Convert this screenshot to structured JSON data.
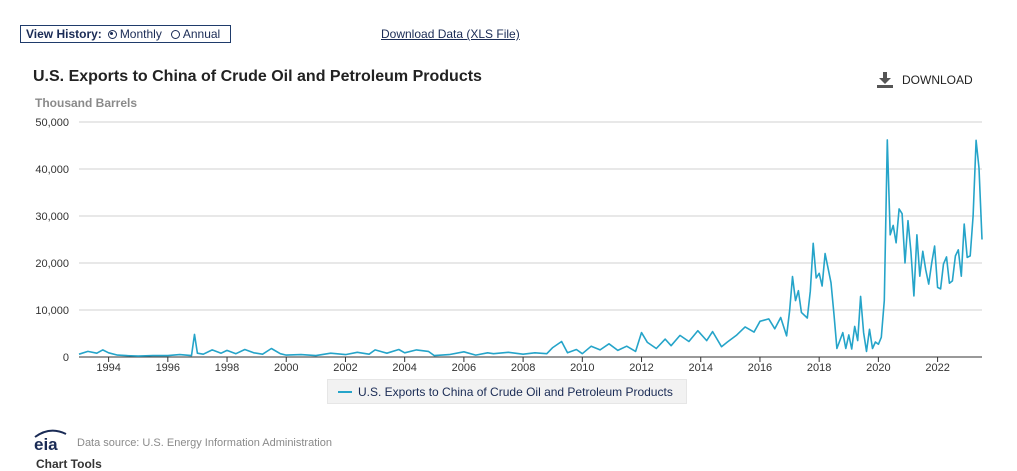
{
  "controls": {
    "view_history_label": "View History:",
    "monthly_label": "Monthly",
    "annual_label": "Annual",
    "download_link": "Download Data (XLS File)",
    "download_button": "DOWNLOAD"
  },
  "footer": {
    "source": "Data source: U.S. Energy Information Administration",
    "logo_text": "eia",
    "partial_text": "Chart Tools"
  },
  "colors": {
    "series": "#25a4c9",
    "grid": "#d0d0d0",
    "text_blue": "#1a2b55"
  },
  "chart_data": {
    "type": "line",
    "title": "U.S. Exports to China of Crude Oil and Petroleum Products",
    "ylabel": "Thousand Barrels",
    "xlabel": "",
    "xlim": [
      1993.0,
      2023.5
    ],
    "ylim": [
      0,
      50000
    ],
    "yticks": [
      0,
      10000,
      20000,
      30000,
      40000,
      50000
    ],
    "ytick_labels": [
      "0",
      "10,000",
      "20,000",
      "30,000",
      "40,000",
      "50,000"
    ],
    "xticks": [
      1994,
      1996,
      1998,
      2000,
      2002,
      2004,
      2006,
      2008,
      2010,
      2012,
      2014,
      2016,
      2018,
      2020,
      2022
    ],
    "xtick_labels": [
      "1994",
      "1996",
      "1998",
      "2000",
      "2002",
      "2004",
      "2006",
      "2008",
      "2010",
      "2012",
      "2014",
      "2016",
      "2018",
      "2020",
      "2022"
    ],
    "legend": "top-center-below",
    "series": [
      {
        "name": "U.S. Exports to China of Crude Oil and Petroleum Products",
        "x": [
          1993.0,
          1993.3,
          1993.6,
          1993.8,
          1994.0,
          1994.3,
          1994.6,
          1995.0,
          1995.5,
          1996.0,
          1996.4,
          1996.8,
          1996.9,
          1997.0,
          1997.2,
          1997.5,
          1997.8,
          1998.0,
          1998.3,
          1998.6,
          1998.9,
          1999.2,
          1999.5,
          1999.8,
          2000.0,
          2000.5,
          2001.0,
          2001.5,
          2002.0,
          2002.4,
          2002.8,
          2003.0,
          2003.4,
          2003.8,
          2004.0,
          2004.4,
          2004.8,
          2005.0,
          2005.5,
          2006.0,
          2006.4,
          2006.8,
          2007.0,
          2007.5,
          2008.0,
          2008.4,
          2008.8,
          2009.0,
          2009.3,
          2009.5,
          2009.8,
          2010.0,
          2010.3,
          2010.6,
          2010.9,
          2011.2,
          2011.5,
          2011.8,
          2012.0,
          2012.2,
          2012.5,
          2012.8,
          2013.0,
          2013.3,
          2013.6,
          2013.9,
          2014.2,
          2014.4,
          2014.7,
          2014.9,
          2015.2,
          2015.5,
          2015.8,
          2016.0,
          2016.3,
          2016.5,
          2016.7,
          2016.9,
          2017.0,
          2017.1,
          2017.2,
          2017.3,
          2017.4,
          2017.6,
          2017.7,
          2017.8,
          2017.9,
          2018.0,
          2018.1,
          2018.2,
          2018.4,
          2018.5,
          2018.6,
          2018.8,
          2018.9,
          2019.0,
          2019.1,
          2019.2,
          2019.3,
          2019.4,
          2019.5,
          2019.6,
          2019.7,
          2019.8,
          2019.9,
          2020.0,
          2020.1,
          2020.2,
          2020.3,
          2020.4,
          2020.5,
          2020.6,
          2020.7,
          2020.8,
          2020.9,
          2021.0,
          2021.1,
          2021.2,
          2021.3,
          2021.4,
          2021.5,
          2021.6,
          2021.7,
          2021.8,
          2021.9,
          2022.0,
          2022.1,
          2022.2,
          2022.3,
          2022.4,
          2022.5,
          2022.6,
          2022.7,
          2022.8,
          2022.9,
          2023.0,
          2023.1,
          2023.2,
          2023.3,
          2023.4,
          2023.5
        ],
        "values": [
          600,
          1200,
          800,
          1500,
          900,
          400,
          300,
          200,
          300,
          300,
          500,
          300,
          4800,
          800,
          600,
          1500,
          800,
          1400,
          700,
          1600,
          900,
          600,
          1800,
          700,
          400,
          500,
          300,
          800,
          500,
          1000,
          600,
          1500,
          800,
          1600,
          900,
          1500,
          1200,
          300,
          500,
          1100,
          400,
          900,
          700,
          1000,
          600,
          900,
          700,
          2000,
          3300,
          900,
          1600,
          700,
          2300,
          1500,
          2800,
          1400,
          2300,
          1200,
          5200,
          3100,
          1800,
          3800,
          2400,
          4600,
          3300,
          5600,
          3500,
          5400,
          2200,
          3200,
          4600,
          6400,
          5300,
          7600,
          8100,
          6000,
          8400,
          4500,
          9800,
          17100,
          12000,
          14100,
          9500,
          8300,
          14000,
          24200,
          16800,
          17800,
          15100,
          22000,
          15800,
          9000,
          1800,
          5200,
          1800,
          4700,
          1700,
          6500,
          3500,
          12900,
          5200,
          1200,
          5900,
          1800,
          3200,
          2700,
          4200,
          12000,
          46200,
          26000,
          28000,
          24300,
          31500,
          30500,
          20000,
          29000,
          22500,
          13000,
          26000,
          17200,
          22500,
          18600,
          15500,
          20000,
          23600,
          14800,
          14500,
          19800,
          21300,
          15700,
          16200,
          21500,
          22800,
          17200,
          28300,
          21200,
          21500,
          30000,
          46100,
          40200,
          25000
        ]
      }
    ]
  }
}
